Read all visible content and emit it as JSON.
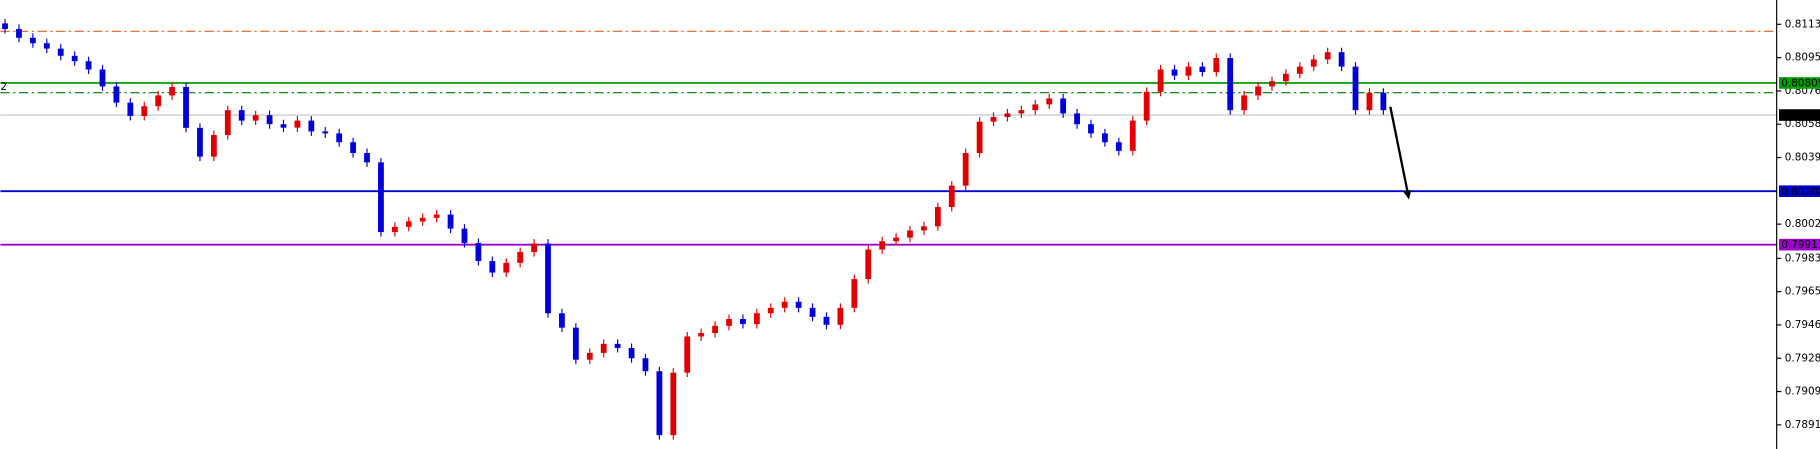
{
  "chart_data": {
    "type": "candlestick",
    "up_color": "#e00000",
    "down_color": "#0000d8",
    "ylim": [
      0.78776,
      0.8127
    ],
    "yticks": [
      0.81135,
      {
        "value": 0.8095,
        "label": "0.80950"
      },
      0.80765,
      {
        "value": 0.8058,
        "label": "0.80580"
      },
      0.80395,
      0.80025,
      0.79835,
      {
        "value": 0.7965,
        "label": "0.79650"
      },
      0.79465,
      {
        "value": 0.7928,
        "label": "0.79280"
      },
      0.79095,
      {
        "value": 0.7891,
        "label": "0.78910"
      }
    ],
    "edge_label": "2",
    "levels": [
      {
        "value": 0.81096,
        "color": "#e0602a",
        "style": "dashdot",
        "labeled": false
      },
      {
        "value": 0.80809,
        "color": "#00a000",
        "style": "solid",
        "labeled": true
      },
      {
        "value": 0.80755,
        "color": "#007a00",
        "style": "dashdot",
        "labeled": false
      },
      {
        "value": 0.80631,
        "color": "#c0c0c0",
        "style": "solid",
        "labeled": true,
        "label_color": "#000000"
      },
      {
        "value": 0.80208,
        "color": "#0000d8",
        "style": "solid",
        "labeled": true
      },
      {
        "value": 0.79911,
        "color": "#a000d0",
        "style": "solid",
        "labeled": true
      }
    ],
    "open": [
      0.8114,
      0.81109,
      0.8106,
      0.8103,
      0.81,
      0.8096,
      0.8093,
      0.80884,
      0.8079,
      0.807,
      0.80626,
      0.8068,
      0.8074,
      0.80787,
      0.8056,
      0.804,
      0.8052,
      0.80658,
      0.806,
      0.8063,
      0.8058,
      0.80561,
      0.806,
      0.8054,
      0.80529,
      0.8048,
      0.8042,
      0.80368,
      0.79981,
      0.8001,
      0.8004,
      0.8006,
      0.80078,
      0.8,
      0.7992,
      0.7982,
      0.79756,
      0.7981,
      0.7987,
      0.79917,
      0.7953,
      0.7945,
      0.79272,
      0.7931,
      0.7936,
      0.79337,
      0.7928,
      0.79208,
      0.78853,
      0.792,
      0.79401,
      0.7942,
      0.7946,
      0.79498,
      0.7947,
      0.7953,
      0.7956,
      0.79594,
      0.7956,
      0.7951,
      0.79466,
      0.7956,
      0.7972,
      0.79884,
      0.7993,
      0.7995,
      0.7999,
      0.80013,
      0.8012,
      0.80239,
      0.8042,
      0.80594,
      0.8062,
      0.8064,
      0.80658,
      0.8069,
      0.80723,
      0.8064,
      0.8058,
      0.80529,
      0.8048,
      0.80432,
      0.806,
      0.8076,
      0.80884,
      0.8085,
      0.809,
      0.8087,
      0.80948,
      0.80658,
      0.8074,
      0.8079,
      0.80819,
      0.8086,
      0.809,
      0.8094,
      0.8098,
      0.809,
      0.80658,
      0.80755
    ],
    "high": [
      0.81165,
      0.81134,
      0.81085,
      0.81055,
      0.81025,
      0.80985,
      0.80955,
      0.80909,
      0.80815,
      0.80725,
      0.80705,
      0.80765,
      0.80812,
      0.80812,
      0.80585,
      0.80545,
      0.80683,
      0.80683,
      0.80655,
      0.80655,
      0.80605,
      0.80625,
      0.80625,
      0.80565,
      0.80554,
      0.80505,
      0.80445,
      0.80393,
      0.80035,
      0.80065,
      0.80085,
      0.80103,
      0.80103,
      0.80025,
      0.79945,
      0.79845,
      0.79835,
      0.79895,
      0.79942,
      0.79942,
      0.79555,
      0.79475,
      0.79335,
      0.79385,
      0.79385,
      0.79362,
      0.79305,
      0.79233,
      0.79225,
      0.79426,
      0.79445,
      0.79485,
      0.79523,
      0.79523,
      0.79555,
      0.79585,
      0.79619,
      0.79619,
      0.79585,
      0.79535,
      0.79585,
      0.79745,
      0.79909,
      0.79955,
      0.79975,
      0.80015,
      0.80038,
      0.80145,
      0.80264,
      0.80445,
      0.80619,
      0.80645,
      0.80665,
      0.80683,
      0.80715,
      0.80748,
      0.80748,
      0.80665,
      0.80605,
      0.80554,
      0.80505,
      0.80625,
      0.80785,
      0.80909,
      0.80909,
      0.80925,
      0.80925,
      0.80973,
      0.80973,
      0.80765,
      0.80815,
      0.80844,
      0.80885,
      0.80925,
      0.80965,
      0.81005,
      0.81005,
      0.80925,
      0.8078,
      0.8078
    ],
    "low": [
      0.81084,
      0.81035,
      0.81005,
      0.80975,
      0.80935,
      0.80905,
      0.80859,
      0.80765,
      0.80675,
      0.80601,
      0.80601,
      0.80655,
      0.80715,
      0.80535,
      0.80375,
      0.80375,
      0.80495,
      0.80575,
      0.80575,
      0.80555,
      0.80536,
      0.80536,
      0.80515,
      0.80504,
      0.80455,
      0.80395,
      0.80343,
      0.79956,
      0.79956,
      0.79985,
      0.80015,
      0.80035,
      0.79975,
      0.79895,
      0.79795,
      0.79731,
      0.79731,
      0.79785,
      0.79845,
      0.79505,
      0.79425,
      0.79247,
      0.79247,
      0.79285,
      0.79312,
      0.79255,
      0.79183,
      0.78828,
      0.78828,
      0.79175,
      0.79376,
      0.79395,
      0.79435,
      0.79445,
      0.79445,
      0.79505,
      0.79535,
      0.79535,
      0.79485,
      0.79441,
      0.79441,
      0.79535,
      0.79695,
      0.79859,
      0.79905,
      0.79925,
      0.79965,
      0.79988,
      0.80095,
      0.80214,
      0.80395,
      0.80569,
      0.80595,
      0.80615,
      0.80633,
      0.80665,
      0.80615,
      0.80555,
      0.80504,
      0.80455,
      0.80407,
      0.80407,
      0.80575,
      0.80735,
      0.80825,
      0.80825,
      0.80845,
      0.80845,
      0.80633,
      0.80633,
      0.80715,
      0.80765,
      0.80794,
      0.80835,
      0.80875,
      0.80915,
      0.80875,
      0.80633,
      0.80633,
      0.80633
    ],
    "close": [
      0.81109,
      0.8106,
      0.8103,
      0.81,
      0.8096,
      0.8093,
      0.80884,
      0.8079,
      0.807,
      0.80626,
      0.8068,
      0.8074,
      0.80787,
      0.8056,
      0.804,
      0.8052,
      0.80658,
      0.806,
      0.8063,
      0.8058,
      0.80561,
      0.806,
      0.8054,
      0.80529,
      0.8048,
      0.8042,
      0.80368,
      0.79981,
      0.8001,
      0.8004,
      0.8006,
      0.80078,
      0.8,
      0.7992,
      0.7982,
      0.79756,
      0.7981,
      0.7987,
      0.79917,
      0.7953,
      0.7945,
      0.79272,
      0.7931,
      0.7936,
      0.79337,
      0.7928,
      0.79208,
      0.78853,
      0.792,
      0.79401,
      0.7942,
      0.7946,
      0.79498,
      0.7947,
      0.7953,
      0.7956,
      0.79594,
      0.7956,
      0.7951,
      0.79466,
      0.7956,
      0.7972,
      0.79884,
      0.7993,
      0.7995,
      0.7999,
      0.80013,
      0.8012,
      0.80239,
      0.8042,
      0.80594,
      0.8062,
      0.8064,
      0.80658,
      0.8069,
      0.80723,
      0.8064,
      0.8058,
      0.80529,
      0.8048,
      0.80432,
      0.806,
      0.8076,
      0.80884,
      0.8085,
      0.809,
      0.8087,
      0.80948,
      0.80658,
      0.8074,
      0.8079,
      0.80819,
      0.8086,
      0.809,
      0.8094,
      0.8098,
      0.809,
      0.80658,
      0.80755,
      0.80658
    ]
  }
}
